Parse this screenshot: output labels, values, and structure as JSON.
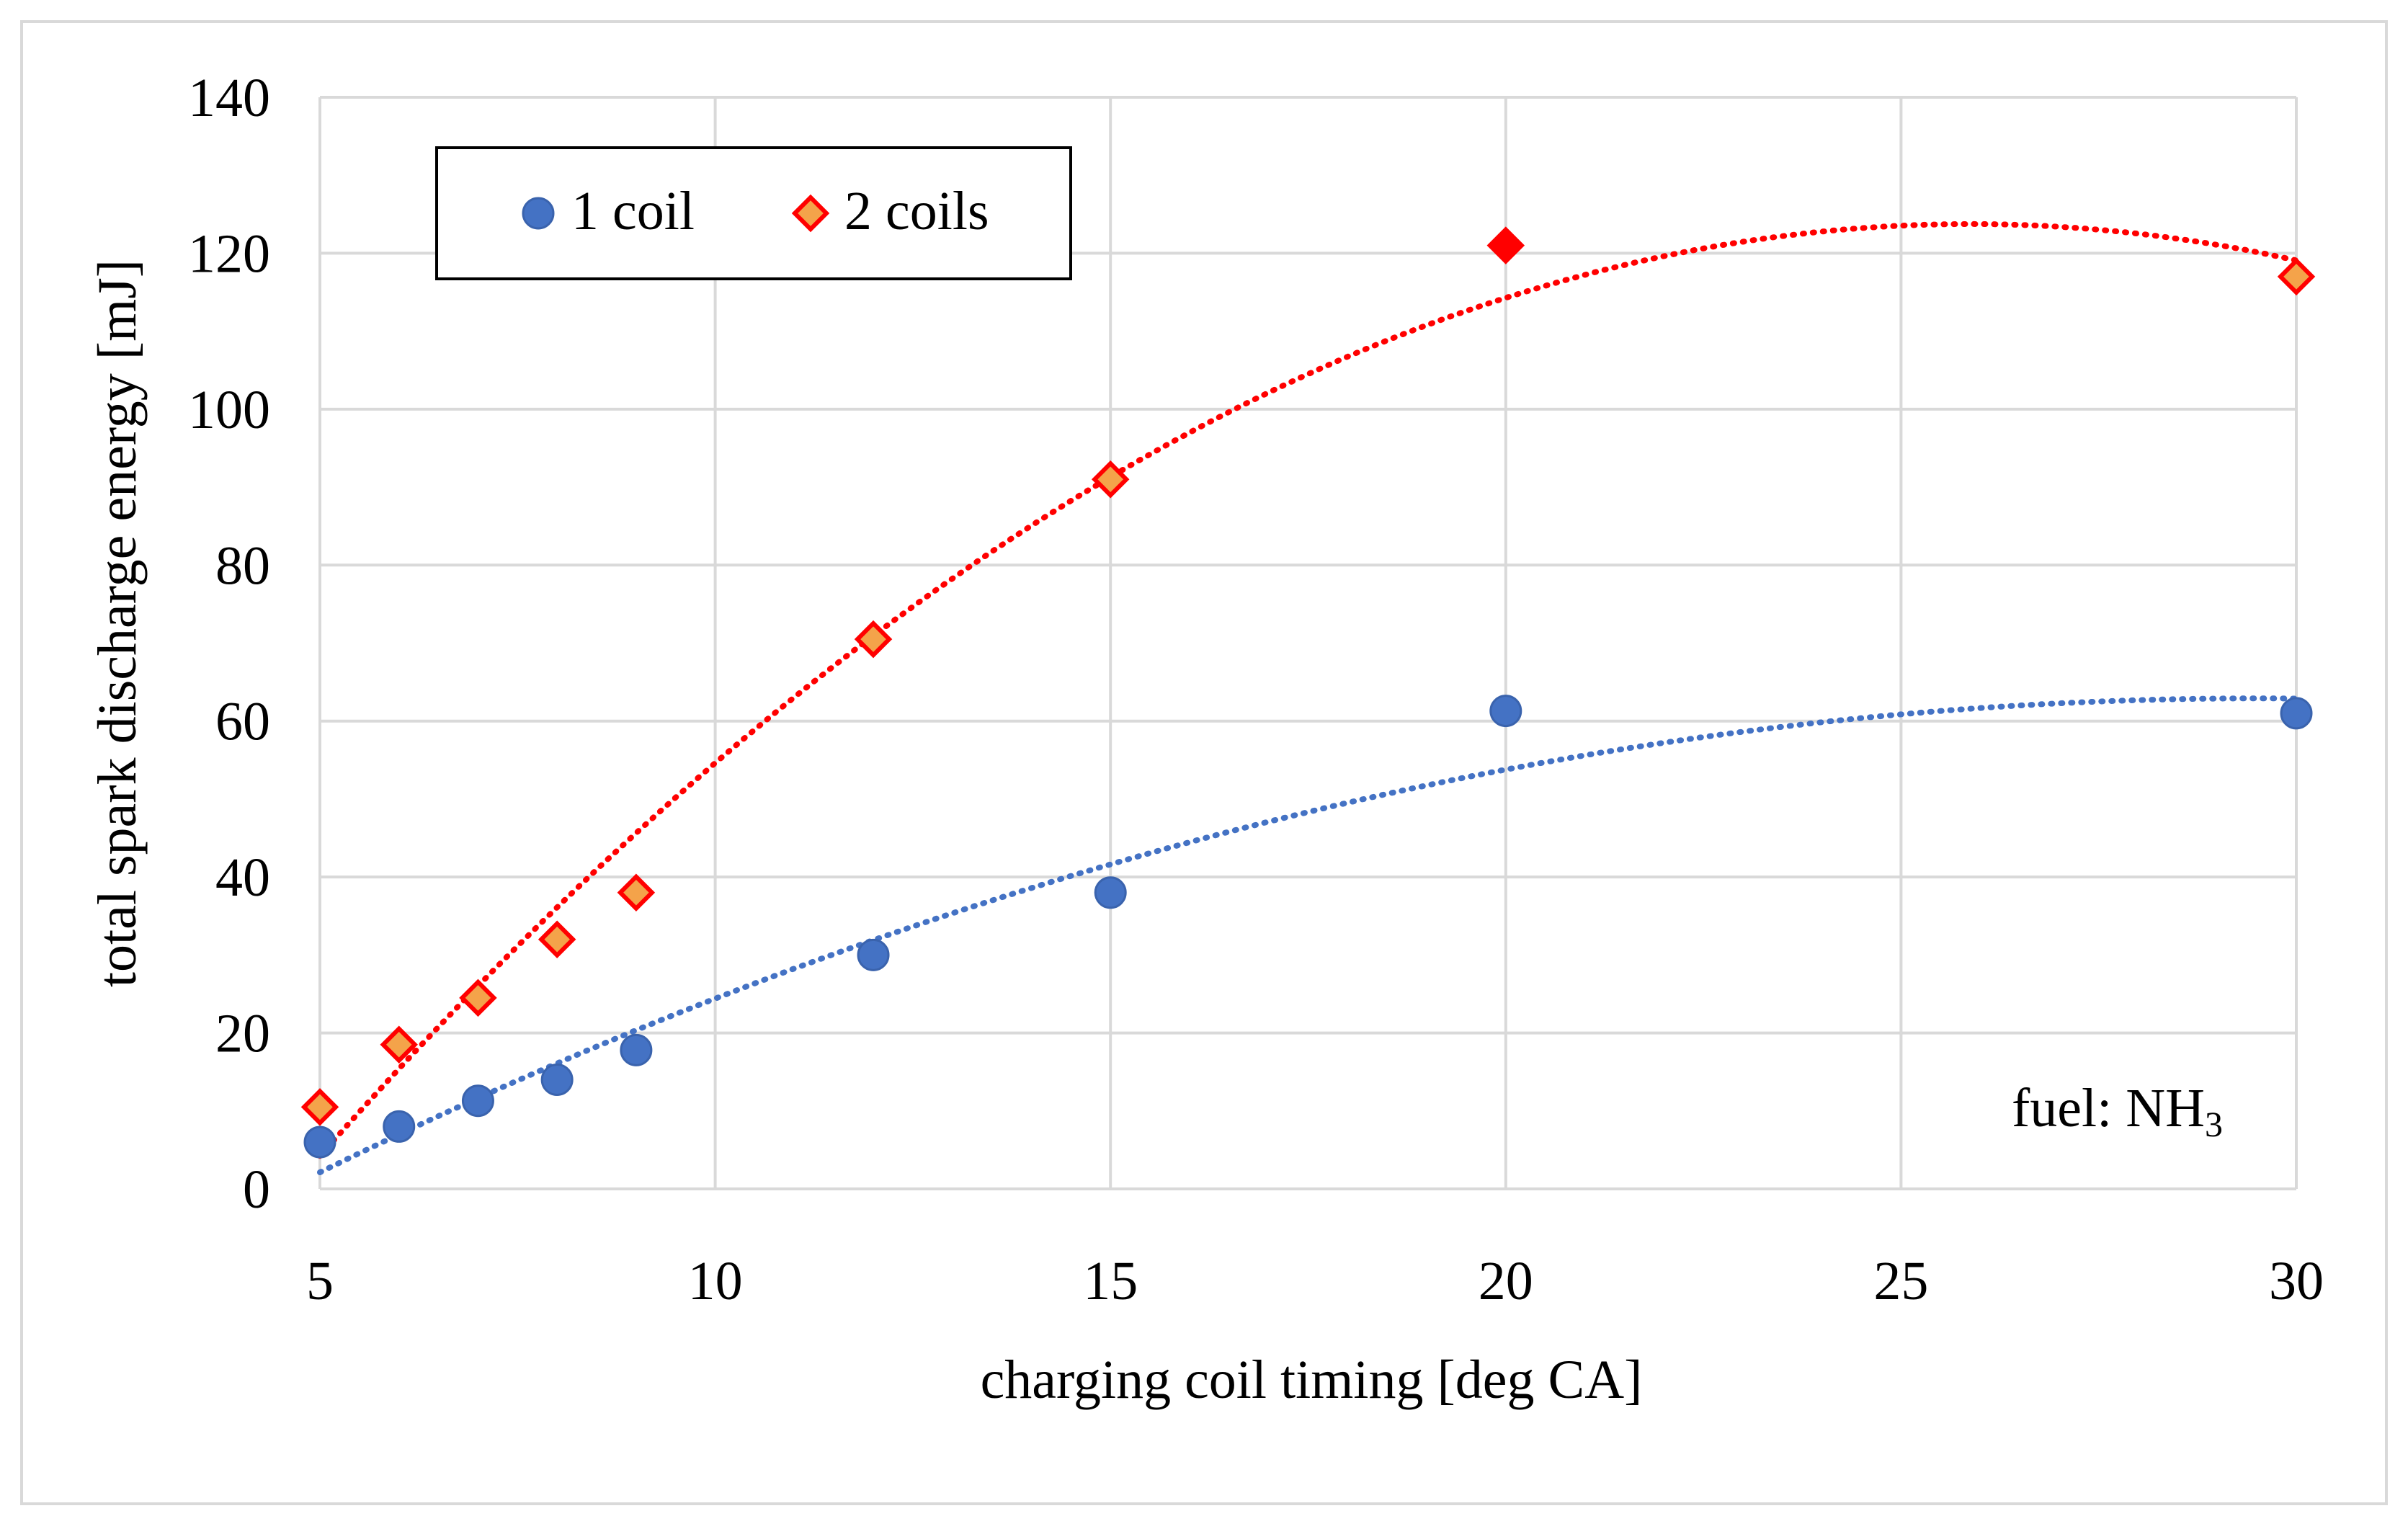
{
  "chart_data": {
    "type": "scatter",
    "title": "",
    "xlabel": "charging coil timing [deg CA]",
    "ylabel": "total spark discharge energy [mJ]",
    "xlim": [
      5,
      30
    ],
    "ylim": [
      0,
      140
    ],
    "xticks": [
      "5",
      "10",
      "15",
      "20",
      "25",
      "30"
    ],
    "yticks": [
      "0",
      "20",
      "40",
      "60",
      "80",
      "100",
      "120",
      "140"
    ],
    "grid": true,
    "legend_position": "top-left",
    "annotation": {
      "prefix": "fuel: NH",
      "subscript": "3"
    },
    "series": [
      {
        "name": "1 coil",
        "marker": "circle",
        "color": "#4472C4",
        "x": [
          5,
          6,
          7,
          8,
          9,
          12,
          15,
          20,
          30
        ],
        "y": [
          6,
          8,
          11.3,
          14,
          17.8,
          30,
          38,
          61.3,
          61
        ]
      },
      {
        "name": "2 coils",
        "marker": "diamond",
        "color": "#FF0000",
        "fill": "#F4A34A",
        "x": [
          5,
          6,
          7,
          8,
          9,
          12,
          15,
          20,
          30
        ],
        "y": [
          10.5,
          18.5,
          24.5,
          32,
          38,
          70.5,
          91,
          121,
          117
        ]
      }
    ]
  }
}
